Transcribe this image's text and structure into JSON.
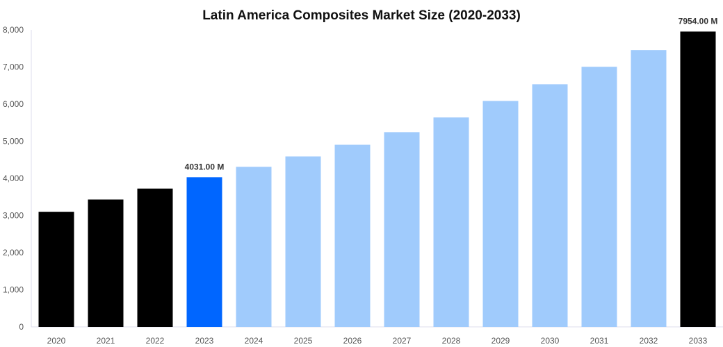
{
  "chart_data": {
    "type": "bar",
    "title": "Latin America Composites Market Size (2020-2033)",
    "xlabel": "",
    "ylabel": "",
    "categories": [
      "2020",
      "2021",
      "2022",
      "2023",
      "2024",
      "2025",
      "2026",
      "2027",
      "2028",
      "2029",
      "2030",
      "2031",
      "2032",
      "2033"
    ],
    "values": [
      3100,
      3430,
      3725,
      4031,
      4310,
      4590,
      4905,
      5245,
      5640,
      6085,
      6535,
      7005,
      7455,
      7954
    ],
    "colors": [
      "#000000",
      "#000000",
      "#000000",
      "#0066ff",
      "#a0cbfc",
      "#a0cbfc",
      "#a0cbfc",
      "#a0cbfc",
      "#a0cbfc",
      "#a0cbfc",
      "#a0cbfc",
      "#a0cbfc",
      "#a0cbfc",
      "#000000"
    ],
    "data_labels": {
      "3": "4031.00 M",
      "13": "7954.00 M"
    },
    "ylim": [
      0,
      8000
    ],
    "yticks": [
      0,
      1000,
      2000,
      3000,
      4000,
      5000,
      6000,
      7000,
      8000
    ],
    "ytick_labels": [
      "0",
      "1,000",
      "2,000",
      "3,000",
      "4,000",
      "5,000",
      "6,000",
      "7,000",
      "8,000"
    ],
    "grid": false,
    "legend": "none"
  }
}
